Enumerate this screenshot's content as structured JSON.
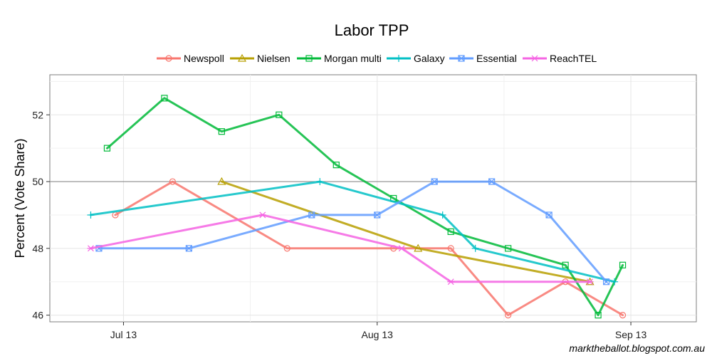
{
  "chart_data": {
    "type": "line",
    "title": "Labor TPP",
    "xlabel": "",
    "ylabel": "Percent (Vote Share)",
    "source": "marktheballot.blogspot.com.au",
    "x_start": "2013-06-22",
    "x_end": "2013-09-09",
    "ylim": [
      45.8,
      53.2
    ],
    "x_ticks": [
      {
        "label": "Jul 13",
        "date": "2013-07-01"
      },
      {
        "label": "Aug 13",
        "date": "2013-08-01"
      },
      {
        "label": "Sep 13",
        "date": "2013-09-01"
      }
    ],
    "y_ticks": [
      46,
      48,
      50,
      52
    ],
    "reference_line": 50,
    "grid": true,
    "legend_position": "top",
    "series": [
      {
        "name": "Newspoll",
        "color": "#F8766D",
        "marker": "circle",
        "points": [
          [
            "2013-06-30",
            49
          ],
          [
            "2013-07-07",
            50
          ],
          [
            "2013-07-21",
            48
          ],
          [
            "2013-08-03",
            48
          ],
          [
            "2013-08-10",
            48
          ],
          [
            "2013-08-17",
            46
          ],
          [
            "2013-08-24",
            47
          ],
          [
            "2013-08-31",
            46
          ]
        ]
      },
      {
        "name": "Nielsen",
        "color": "#B79F00",
        "marker": "triangle",
        "points": [
          [
            "2013-07-13",
            50
          ],
          [
            "2013-08-06",
            48
          ],
          [
            "2013-08-27",
            47
          ]
        ]
      },
      {
        "name": "Morgan multi",
        "color": "#00BA38",
        "marker": "square",
        "points": [
          [
            "2013-06-29",
            51
          ],
          [
            "2013-07-06",
            52.5
          ],
          [
            "2013-07-13",
            51.5
          ],
          [
            "2013-07-20",
            52
          ],
          [
            "2013-07-27",
            50.5
          ],
          [
            "2013-08-03",
            49.5
          ],
          [
            "2013-08-10",
            48.5
          ],
          [
            "2013-08-17",
            48
          ],
          [
            "2013-08-24",
            47.5
          ],
          [
            "2013-08-28",
            46
          ],
          [
            "2013-08-31",
            47.5
          ]
        ]
      },
      {
        "name": "Galaxy",
        "color": "#00BFC4",
        "marker": "plus",
        "points": [
          [
            "2013-06-27",
            49
          ],
          [
            "2013-07-25",
            50
          ],
          [
            "2013-08-09",
            49
          ],
          [
            "2013-08-13",
            48
          ],
          [
            "2013-08-30",
            47
          ]
        ]
      },
      {
        "name": "Essential",
        "color": "#619CFF",
        "marker": "square-x",
        "points": [
          [
            "2013-06-28",
            48
          ],
          [
            "2013-07-09",
            48
          ],
          [
            "2013-07-24",
            49
          ],
          [
            "2013-08-01",
            49
          ],
          [
            "2013-08-08",
            50
          ],
          [
            "2013-08-15",
            50
          ],
          [
            "2013-08-22",
            49
          ],
          [
            "2013-08-29",
            47
          ]
        ]
      },
      {
        "name": "ReachTEL",
        "color": "#F564E3",
        "marker": "asterisk",
        "points": [
          [
            "2013-06-27",
            48
          ],
          [
            "2013-07-18",
            49
          ],
          [
            "2013-08-04",
            48
          ],
          [
            "2013-08-10",
            47
          ],
          [
            "2013-08-27",
            47
          ]
        ]
      }
    ]
  }
}
